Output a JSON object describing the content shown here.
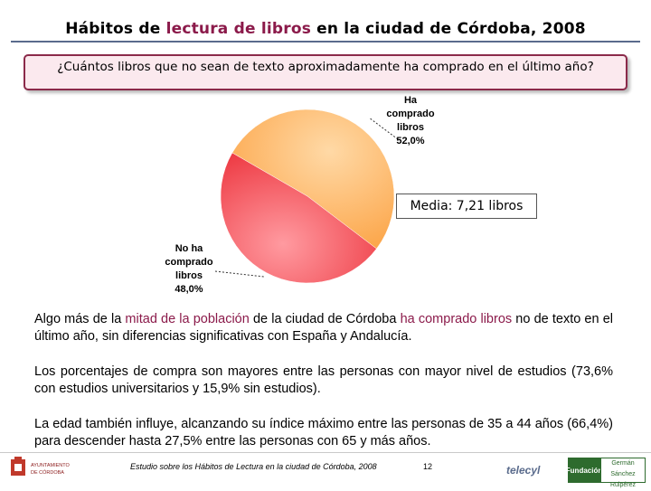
{
  "header": {
    "title_parts": [
      "Hábitos de ",
      "lectura de libros",
      " en la ciudad de Córdoba, 2008"
    ]
  },
  "question": "¿Cuántos libros que no sean de texto aproximadamente ha comprado en el último año?",
  "chart_data": {
    "type": "pie",
    "slices": [
      {
        "label_lines": [
          "Ha",
          "comprado",
          "libros",
          "52,0%"
        ],
        "value": 52.0,
        "color": "#fdb060"
      },
      {
        "label_lines": [
          "No ha",
          "comprado",
          "libros",
          "48,0%"
        ],
        "value": 48.0,
        "color": "#f2545b"
      }
    ],
    "annotation": "Media: 7,21 libros"
  },
  "paragraphs": {
    "p1": [
      "Algo más de la ",
      "mitad de la población",
      " de la ciudad de Córdoba ",
      "ha comprado libros",
      " no de texto en el último año, sin diferencias significativas con España y Andalucía."
    ],
    "p2": "Los porcentajes de compra son mayores entre las personas con mayor nivel de estudios (73,6% con estudios universitarios y 15,9% sin estudios).",
    "p3": "La edad también influye, alcanzando su índice máximo entre las personas de 35 a 44 años (66,4%) para descender hasta 27,5% entre las personas con 65 y más años."
  },
  "footer": {
    "text": "Estudio sobre los Hábitos de Lectura en la ciudad de Córdoba, 2008",
    "page": "12",
    "logo_left_lines": [
      "AYUNTAMIENTO",
      "DE CÓRDOBA"
    ],
    "logo_telecyl": "telecyl",
    "logo_fund_lines": [
      "Fundación",
      "Germán",
      "Sánchez Ruipérez"
    ]
  }
}
